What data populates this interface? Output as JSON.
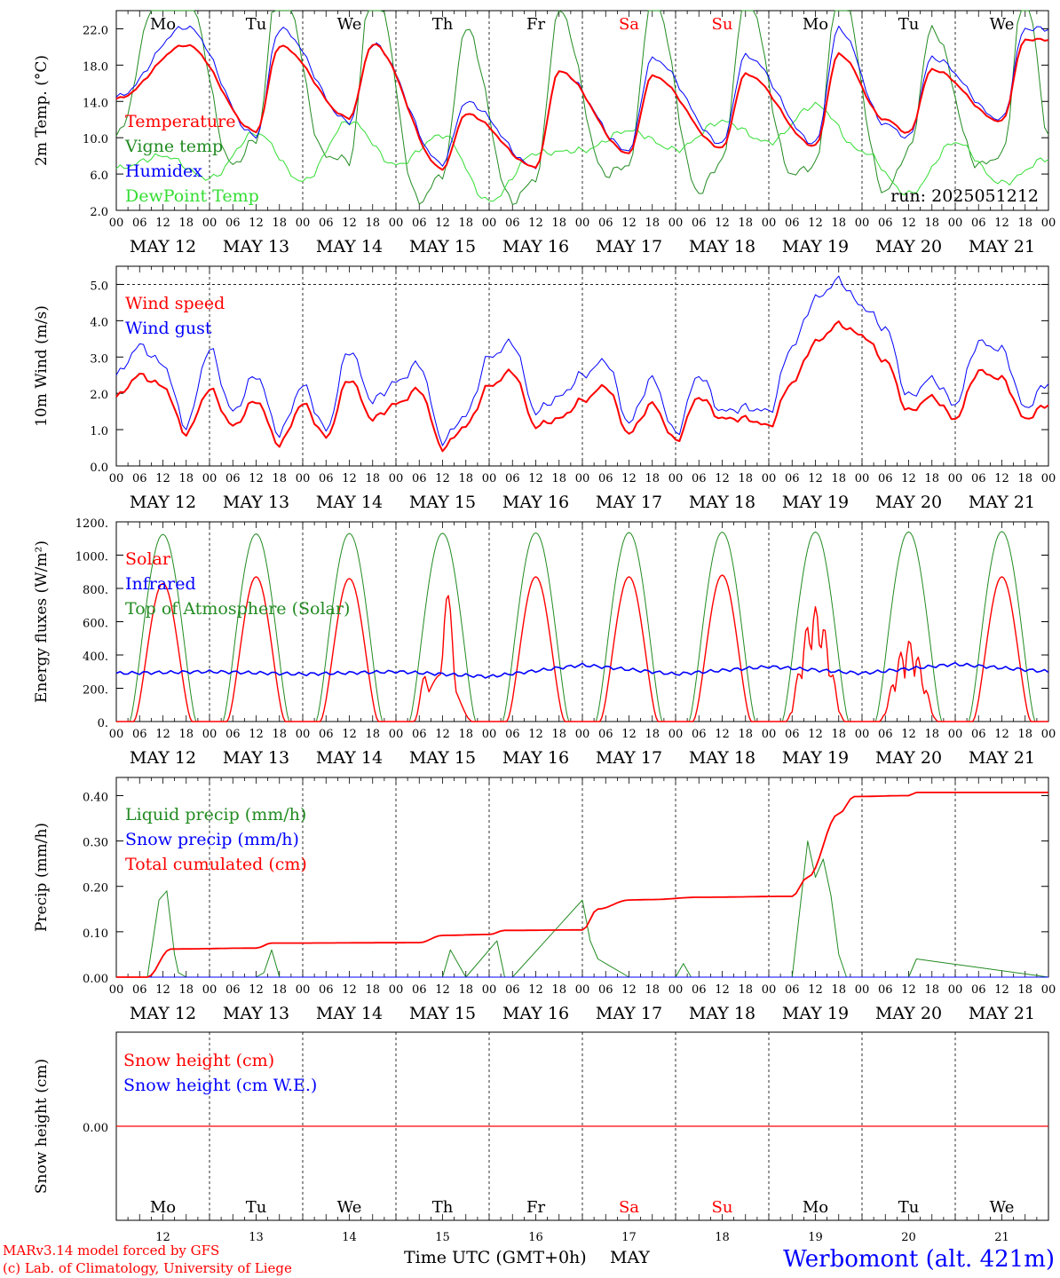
{
  "time_axis": {
    "hours": [
      "00",
      "06",
      "12",
      "18"
    ],
    "dates": [
      "MAY 12",
      "MAY 13",
      "MAY 14",
      "MAY 15",
      "MAY 16",
      "MAY 17",
      "MAY 18",
      "MAY 19",
      "MAY 20",
      "MAY 21"
    ],
    "day_names": [
      "Mo",
      "Tu",
      "We",
      "Th",
      "Fr",
      "Sa",
      "Su",
      "Mo",
      "Tu",
      "We"
    ],
    "weekend_days": [
      5,
      6
    ],
    "day_numbers": [
      "12",
      "13",
      "14",
      "15",
      "16",
      "17",
      "18",
      "19",
      "20",
      "21"
    ],
    "xlabel": "Time UTC (GMT+0h)",
    "month": "MAY"
  },
  "colors": {
    "red": "#ff0000",
    "green": "#228B22",
    "blue": "#0000ff",
    "lightgreen": "#33dd33"
  },
  "footer": {
    "line1": "MARv3.14 model forced by GFS",
    "line2": "(c) Lab. of Climatology, University of Liege",
    "station": "Werbomont (alt. 421m)"
  },
  "chart_data": [
    {
      "type": "line",
      "ylabel": "2m Temp. (°C)",
      "ylim": [
        2.0,
        24.0
      ],
      "yticks": [
        "2.0",
        "6.0",
        "10.0",
        "14.0",
        "18.0",
        "22.0"
      ],
      "annotation": "run: 2025051212",
      "series": [
        {
          "name": "Temperature",
          "color": "red",
          "x_hours": [
            0,
            18,
            36,
            42,
            60,
            66,
            84,
            90,
            108,
            114,
            132,
            138,
            156,
            162,
            180,
            186,
            198,
            204,
            210,
            228,
            234
          ],
          "values": [
            14.3,
            20.2,
            10.7,
            20.1,
            12.2,
            20.3,
            6.6,
            12.6,
            6.8,
            17.3,
            8.3,
            16.8,
            8.9,
            17.0,
            9.1,
            19.2,
            12.0,
            10.5,
            17.5,
            11.8,
            20.8
          ]
        },
        {
          "name": "Vigne temp",
          "color": "green",
          "x_hours": [
            0,
            12,
            18,
            30,
            36,
            42,
            54,
            60,
            66,
            78,
            84,
            90,
            102,
            108,
            114,
            126,
            132,
            138,
            150,
            156,
            162,
            174,
            180,
            186,
            198,
            204,
            210,
            222,
            228,
            234,
            240
          ],
          "values": [
            10.2,
            28.0,
            26.0,
            7.0,
            9.8,
            28.0,
            8.0,
            7.5,
            28.0,
            3.0,
            6.0,
            22.0,
            3.0,
            5.5,
            24.0,
            6.0,
            7.0,
            26.0,
            4.0,
            7.5,
            26.0,
            6.0,
            7.0,
            27.0,
            4.0,
            8.5,
            22.0,
            7.0,
            8.0,
            27.0,
            10.5
          ]
        },
        {
          "name": "Humidex",
          "color": "blue",
          "x_hours": [
            0,
            18,
            36,
            42,
            60,
            66,
            84,
            90,
            108,
            114,
            132,
            138,
            156,
            162,
            180,
            186,
            198,
            204,
            210,
            228,
            234
          ],
          "values": [
            14.5,
            22.2,
            10.2,
            22.0,
            11.8,
            20.3,
            7.2,
            13.9,
            6.8,
            17.3,
            8.6,
            18.7,
            9.4,
            19.0,
            9.4,
            22.0,
            11.5,
            10.0,
            18.8,
            12.0,
            22.0
          ]
        },
        {
          "name": "DewPoint Temp",
          "color": "lightgreen",
          "x_hours": [
            0,
            12,
            24,
            36,
            48,
            60,
            72,
            84,
            96,
            108,
            120,
            132,
            144,
            156,
            168,
            180,
            192,
            204,
            216,
            228,
            240
          ],
          "values": [
            6.6,
            8.0,
            5.5,
            10.5,
            5.2,
            11.8,
            7.0,
            10.3,
            3.0,
            8.3,
            8.6,
            10.8,
            8.7,
            11.8,
            9.5,
            13.6,
            8.5,
            3.8,
            9.5,
            5.0,
            7.7
          ]
        }
      ]
    },
    {
      "type": "line",
      "ylabel": "10m Wind (m/s)",
      "ylim": [
        0.0,
        5.5
      ],
      "yticks": [
        "0.0",
        "1.0",
        "2.0",
        "3.0",
        "4.0",
        "5.0"
      ],
      "series": [
        {
          "name": "Wind speed",
          "color": "red",
          "x_hours": [
            0,
            6,
            12,
            18,
            24,
            30,
            36,
            42,
            48,
            54,
            60,
            66,
            72,
            78,
            84,
            90,
            96,
            102,
            108,
            114,
            120,
            126,
            132,
            138,
            144,
            150,
            156,
            162,
            168,
            174,
            180,
            186,
            192,
            198,
            204,
            210,
            216,
            222,
            228,
            234,
            240
          ],
          "values": [
            1.9,
            2.5,
            2.2,
            0.9,
            2.1,
            1.1,
            1.8,
            0.6,
            1.7,
            0.8,
            2.4,
            1.3,
            1.7,
            2.1,
            0.5,
            1.1,
            2.2,
            2.6,
            1.1,
            1.3,
            1.8,
            2.2,
            0.9,
            1.7,
            0.7,
            1.9,
            1.3,
            1.3,
            1.1,
            2.3,
            3.4,
            3.9,
            3.6,
            2.9,
            1.5,
            1.9,
            1.3,
            2.6,
            2.4,
            1.3,
            1.7
          ]
        },
        {
          "name": "Wind gust",
          "color": "blue",
          "x_hours": [
            0,
            6,
            12,
            18,
            24,
            30,
            36,
            42,
            48,
            54,
            60,
            66,
            72,
            78,
            84,
            90,
            96,
            102,
            108,
            114,
            120,
            126,
            132,
            138,
            144,
            150,
            156,
            162,
            168,
            174,
            180,
            186,
            192,
            198,
            204,
            210,
            216,
            222,
            228,
            234,
            240
          ],
          "values": [
            2.5,
            3.3,
            2.8,
            1.1,
            3.2,
            1.5,
            2.5,
            0.9,
            2.2,
            1.0,
            3.2,
            1.8,
            2.3,
            2.8,
            0.7,
            1.4,
            3.0,
            3.4,
            1.5,
            1.9,
            2.5,
            2.9,
            1.2,
            2.4,
            0.9,
            2.5,
            1.5,
            1.6,
            1.5,
            3.3,
            4.6,
            5.1,
            4.4,
            3.8,
            1.9,
            2.4,
            1.7,
            3.4,
            3.2,
            1.6,
            2.3
          ]
        }
      ]
    },
    {
      "type": "line",
      "ylabel": "Energy fluxes (W/m²)",
      "ylim": [
        0,
        1200
      ],
      "yticks": [
        "0.",
        "200.",
        "400.",
        "600.",
        "800.",
        "1000.",
        "1200."
      ],
      "series": [
        {
          "name": "Solar",
          "color": "red",
          "peaks": [
            830,
            870,
            860,
            820,
            870,
            870,
            880,
            690,
            490,
            870
          ]
        },
        {
          "name": "Infrared",
          "color": "blue",
          "values_approx": [
            290,
            300,
            285,
            300,
            270,
            340,
            285,
            330,
            290,
            345,
            300
          ]
        },
        {
          "name": "Top of Atmosphere (Solar)",
          "color": "green",
          "peaks": [
            1125,
            1128,
            1130,
            1132,
            1134,
            1136,
            1138,
            1139,
            1140,
            1142
          ]
        }
      ]
    },
    {
      "type": "line",
      "ylabel": "Precip (mm/h)",
      "ylim": [
        0.0,
        0.44
      ],
      "yticks": [
        "0.00",
        "0.10",
        "0.20",
        "0.30",
        "0.40"
      ],
      "series": [
        {
          "name": "Liquid precip (mm/h)",
          "color": "green",
          "x_hours": [
            0,
            8,
            11,
            13,
            15,
            16,
            18,
            36,
            38,
            40,
            42,
            84,
            86,
            88,
            90,
            98,
            100,
            102,
            120,
            122,
            124,
            126,
            132,
            144,
            146,
            148,
            174,
            178,
            180,
            182,
            184,
            186,
            188,
            204,
            206,
            240
          ],
          "values": [
            0.0,
            0.0,
            0.17,
            0.19,
            0.05,
            0.01,
            0.0,
            0.0,
            0.01,
            0.06,
            0.0,
            0.0,
            0.06,
            0.03,
            0.0,
            0.08,
            0.0,
            0.0,
            0.17,
            0.08,
            0.04,
            0.03,
            0.0,
            0.0,
            0.03,
            0.0,
            0.0,
            0.3,
            0.22,
            0.26,
            0.18,
            0.05,
            0.0,
            0.0,
            0.04,
            0.0
          ]
        },
        {
          "name": "Snow precip (mm/h)",
          "color": "blue",
          "x_hours": [
            0,
            240
          ],
          "values": [
            0.0,
            0.0
          ]
        },
        {
          "name": "Total cumulated (cm)",
          "color": "red",
          "x_hours": [
            0,
            8,
            14,
            36,
            40,
            78,
            84,
            96,
            100,
            120,
            124,
            132,
            138,
            150,
            174,
            178,
            186,
            190,
            204,
            206,
            240
          ],
          "values": [
            0.0,
            0.0,
            0.062,
            0.064,
            0.075,
            0.076,
            0.092,
            0.094,
            0.103,
            0.104,
            0.15,
            0.17,
            0.171,
            0.176,
            0.178,
            0.22,
            0.36,
            0.398,
            0.4,
            0.407,
            0.407
          ]
        }
      ]
    },
    {
      "type": "line",
      "ylabel": "Snow height (cm)",
      "yticks": [
        "0.00"
      ],
      "series": [
        {
          "name": "Snow height (cm)",
          "color": "red",
          "x_hours": [
            0,
            240
          ],
          "values": [
            0.0,
            0.0
          ]
        },
        {
          "name": "Snow height (cm W.E.)",
          "color": "blue",
          "x_hours": [
            0,
            240
          ],
          "values": [
            0.0,
            0.0
          ]
        }
      ]
    }
  ]
}
